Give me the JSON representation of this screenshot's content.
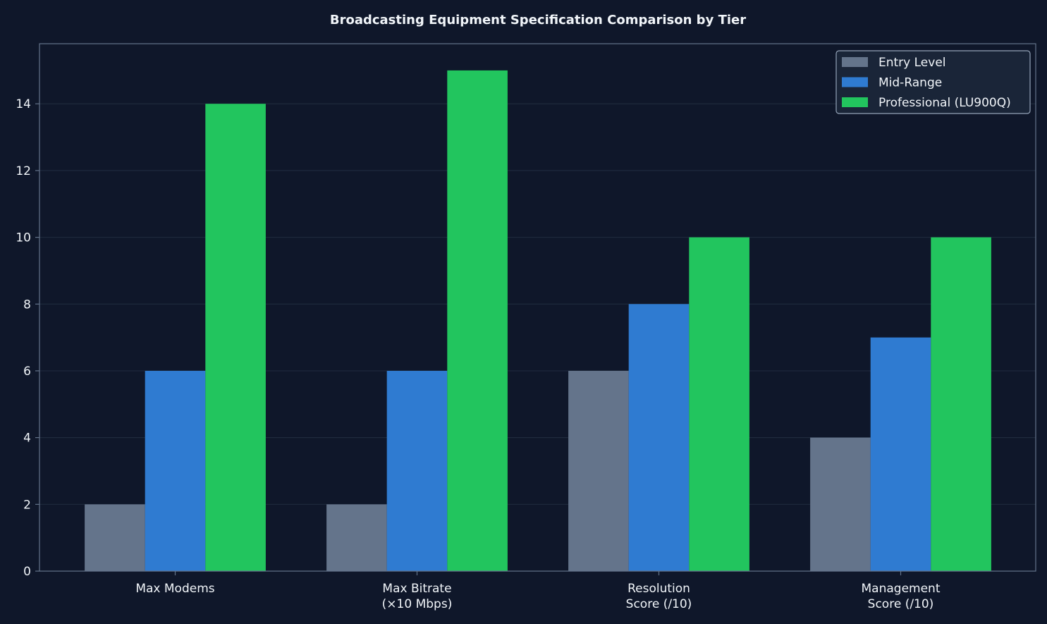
{
  "colors": {
    "background": "#0f172a",
    "plot_background": "#0f172a",
    "frame": "#64748b",
    "grid": "#1f2a3d",
    "text": "#f1f5f9",
    "legend_background": "#1a2538",
    "legend_border": "#94a3b8"
  },
  "chart_data": {
    "type": "bar",
    "title": "Broadcasting Equipment Specification Comparison by Tier",
    "xlabel": "",
    "ylabel": "",
    "categories": [
      [
        "Max Modems"
      ],
      [
        "Max Bitrate",
        "(×10 Mbps)"
      ],
      [
        "Resolution",
        "Score (/10)"
      ],
      [
        "Management",
        "Score (/10)"
      ]
    ],
    "series": [
      {
        "name": "Entry Level",
        "color": "#64748b",
        "values": [
          2,
          2,
          6,
          4
        ]
      },
      {
        "name": "Mid-Range",
        "color": "#2f7bd1",
        "values": [
          6,
          6,
          8,
          7
        ]
      },
      {
        "name": "Professional (LU900Q)",
        "color": "#22c55e",
        "values": [
          14,
          15,
          10,
          10
        ]
      }
    ],
    "ylim": [
      0,
      15.8
    ],
    "yticks": [
      0,
      2,
      4,
      6,
      8,
      10,
      12,
      14
    ],
    "grid": true,
    "legend": "top-right"
  }
}
